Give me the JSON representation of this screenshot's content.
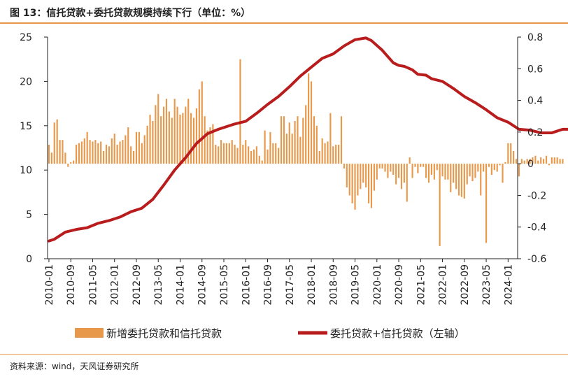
{
  "title": "图 13：信托贷款+委托贷款规模持续下行（单位：%）",
  "source": "资料来源：wind，天风证券研究所",
  "colors": {
    "accent": "#e8984a",
    "bar": "#e8984a",
    "line": "#b81c1c",
    "axis": "#222222"
  },
  "chart_data": {
    "type": "bar+line",
    "title": "",
    "x_start": "2010-01",
    "x_end": "2024-04",
    "x_tick_labels": [
      "2010-01",
      "2010-09",
      "2011-05",
      "2012-01",
      "2012-09",
      "2013-05",
      "2014-01",
      "2014-09",
      "2015-05",
      "2016-01",
      "2016-09",
      "2017-05",
      "2018-01",
      "2018-09",
      "2019-05",
      "2020-01",
      "2020-09",
      "2021-05",
      "2022-01",
      "2022-09",
      "2023-05",
      "2024-01"
    ],
    "left_axis": {
      "ylim": [
        0,
        25
      ],
      "ticks": [
        "0",
        "5",
        "10",
        "15",
        "20",
        "25"
      ]
    },
    "right_axis": {
      "ylim": [
        -0.6,
        0.8
      ],
      "ticks": [
        "-0.6",
        "-0.4",
        "-0.2",
        "0",
        "0.2",
        "0.4",
        "0.6",
        "0.8"
      ]
    },
    "legend": {
      "placement": "bottom"
    },
    "series": [
      {
        "name": "新增委托贷款和信托贷款",
        "type": "bar",
        "axis": "right",
        "values": [
          0.12,
          0.07,
          0.26,
          0.28,
          0.15,
          0.15,
          0.07,
          -0.02,
          0.01,
          0.02,
          0.12,
          0.13,
          0.14,
          0.16,
          0.2,
          0.15,
          0.14,
          0.15,
          0.13,
          0.14,
          0.08,
          0.12,
          0.11,
          0.16,
          0.19,
          0.12,
          0.14,
          0.15,
          0.18,
          0.23,
          0.11,
          0.08,
          0.2,
          0.2,
          0.13,
          0.18,
          0.24,
          0.31,
          0.27,
          0.37,
          0.44,
          0.3,
          0.36,
          0.41,
          0.33,
          0.29,
          0.41,
          0.36,
          0.31,
          0.32,
          0.36,
          0.41,
          0.32,
          0.29,
          0.35,
          0.47,
          0.52,
          0.3,
          0.21,
          0.23,
          0.25,
          0.12,
          0.11,
          0.15,
          0.13,
          0.13,
          0.13,
          0.15,
          0.12,
          0.1,
          0.66,
          0.12,
          0.15,
          0.11,
          0.08,
          0.09,
          0.11,
          0.05,
          0.02,
          0.21,
          0.09,
          0.2,
          0.13,
          0.13,
          0.1,
          0.3,
          0.3,
          0.19,
          0.26,
          0.19,
          0.27,
          0.3,
          0.17,
          0.29,
          0.37,
          0.57,
          0.52,
          0.3,
          0.24,
          0.08,
          0.16,
          0.13,
          0.14,
          0.32,
          0.11,
          0.12,
          0.12,
          0.3,
          -0.03,
          -0.15,
          -0.2,
          -0.25,
          -0.29,
          -0.2,
          -0.16,
          -0.12,
          -0.15,
          -0.25,
          -0.28,
          -0.17,
          -0.1,
          -0.03,
          -0.03,
          -0.05,
          -0.09,
          -0.05,
          -0.07,
          -0.13,
          -0.09,
          -0.16,
          -0.12,
          -0.24,
          0.04,
          -0.09,
          -0.02,
          -0.06,
          -0.02,
          -0.02,
          -0.09,
          -0.12,
          -0.07,
          -0.1,
          -0.04,
          -0.52,
          -0.08,
          -0.1,
          -0.1,
          -0.18,
          -0.12,
          -0.16,
          -0.2,
          -0.21,
          -0.22,
          -0.13,
          -0.08,
          -0.11,
          -0.09,
          -0.05,
          -0.2,
          -0.05,
          -0.5,
          -0.02,
          -0.07,
          -0.04,
          -0.05,
          -0.01,
          -0.12,
          0.01,
          0.13,
          0.13,
          0.08,
          0.03,
          -0.08,
          0.03,
          0.02,
          0.03,
          0.03,
          0.04,
          0.05,
          0.02,
          0.04,
          0.03,
          0.05,
          -0.01,
          0.04,
          0.04,
          0.04,
          0.03,
          0.03
        ],
        "color": "#e8984a"
      },
      {
        "name": "委托贷款+信托贷款（左轴）",
        "type": "line",
        "axis": "left",
        "x_index": [
          0,
          2,
          6,
          10,
          14,
          18,
          22,
          26,
          30,
          34,
          38,
          42,
          46,
          50,
          54,
          58,
          62,
          68,
          72,
          76,
          80,
          84,
          88,
          92,
          96,
          100,
          104,
          108,
          112,
          116,
          118,
          122,
          126,
          128,
          130,
          133,
          135,
          138,
          140,
          144,
          148,
          152,
          156,
          160,
          164,
          168,
          172,
          176,
          180,
          184,
          188,
          192,
          196,
          200,
          204,
          207,
          211
        ],
        "values": [
          2.0,
          2.2,
          3.0,
          3.3,
          3.5,
          4.0,
          4.3,
          4.7,
          5.3,
          5.7,
          6.7,
          8.3,
          10.0,
          11.4,
          13.0,
          14.1,
          14.6,
          15.2,
          15.5,
          16.4,
          17.4,
          18.3,
          19.4,
          20.6,
          21.6,
          22.6,
          23.1,
          24.0,
          24.7,
          24.9,
          24.6,
          23.5,
          22.1,
          21.8,
          21.7,
          21.3,
          20.8,
          20.7,
          20.3,
          20.0,
          19.2,
          18.3,
          17.6,
          16.8,
          15.9,
          15.4,
          14.6,
          14.5,
          14.2,
          14.2,
          14.6,
          14.6,
          14.7,
          14.6,
          14.7,
          14.8,
          14.9
        ],
        "color": "#b81c1c"
      }
    ]
  }
}
